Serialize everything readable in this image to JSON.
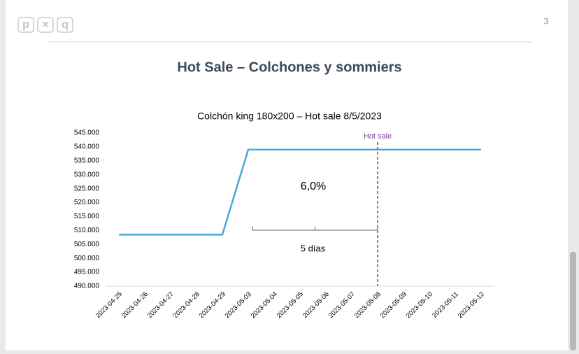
{
  "page": {
    "logo": [
      "p",
      "×",
      "q"
    ],
    "number": "3",
    "title": "Hot Sale – Colchones y sommiers"
  },
  "chart_data": {
    "type": "line",
    "title": "Colchón king 180x200 – Hot sale 8/5/2023",
    "categories": [
      "2023-04-25",
      "2023-04-26",
      "2023-04-27",
      "2023-04-28",
      "2023-04-29",
      "2023-05-03",
      "2023-05-04",
      "2023-05-05",
      "2023-05-06",
      "2023-05-07",
      "2023-05-08",
      "2023-05-09",
      "2023-05-10",
      "2023-05-11",
      "2023-05-12"
    ],
    "series": [
      {
        "name": "Colchón king 180x200",
        "color": "#4aa8dc",
        "values": [
          508500,
          508500,
          508500,
          508500,
          508500,
          539000,
          539000,
          539000,
          539000,
          539000,
          539000,
          539000,
          539000,
          539000,
          539000
        ]
      }
    ],
    "ylim": [
      490000,
      545000
    ],
    "yticks": [
      {
        "value": 490000,
        "label": "490.000"
      },
      {
        "value": 495000,
        "label": "495.000"
      },
      {
        "value": 500000,
        "label": "500.000"
      },
      {
        "value": 505000,
        "label": "505.000"
      },
      {
        "value": 510000,
        "label": "510.000"
      },
      {
        "value": 515000,
        "label": "515.000"
      },
      {
        "value": 520000,
        "label": "520.000"
      },
      {
        "value": 525000,
        "label": "525.000"
      },
      {
        "value": 530000,
        "label": "530.000"
      },
      {
        "value": 535000,
        "label": "535.000"
      },
      {
        "value": 540000,
        "label": "540.000"
      },
      {
        "value": 545000,
        "label": "545.000"
      }
    ],
    "vline": {
      "label": "Hot sale",
      "x": "2023-05-08",
      "color": "#d62728"
    },
    "annotation": "6,0%",
    "bracket": {
      "label": "5 días",
      "from": "2023-05-03",
      "to": "2023-05-08"
    }
  }
}
